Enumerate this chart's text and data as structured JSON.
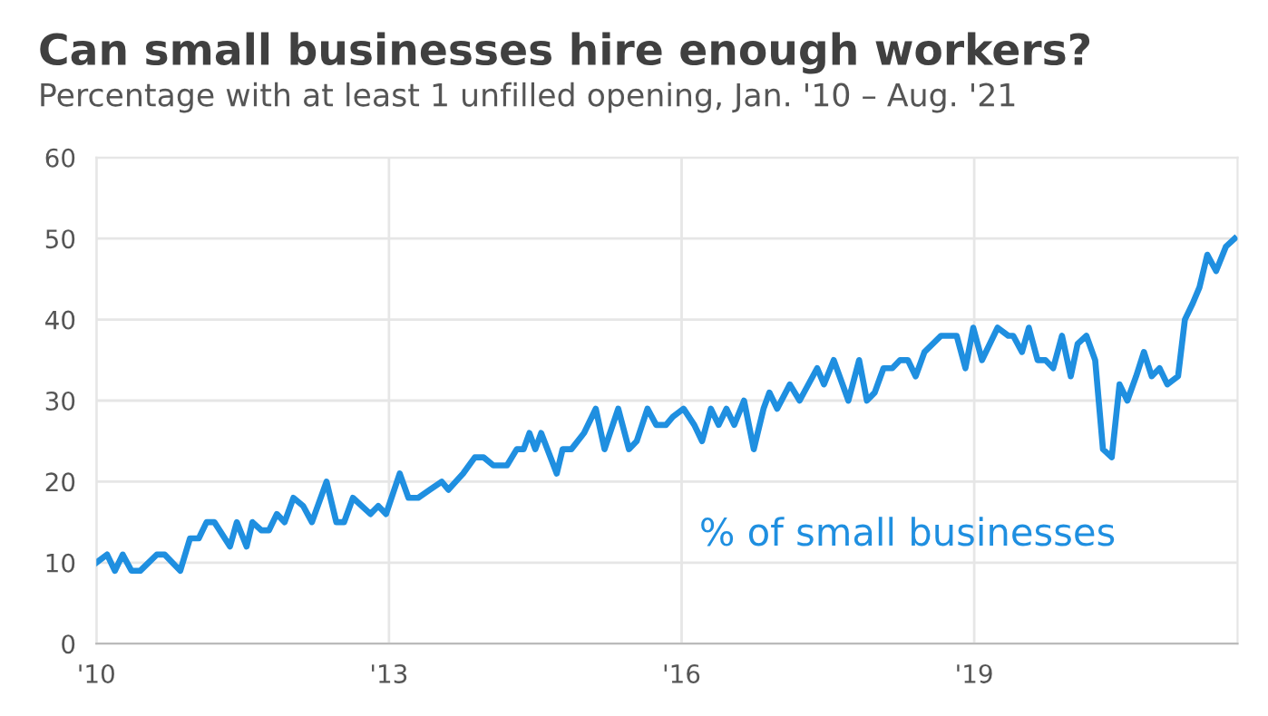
{
  "chart_data": {
    "type": "line",
    "title": "Can small businesses hire enough workers?",
    "subtitle": "Percentage with at least 1 unfilled opening, Jan. '10 – Aug. '21",
    "x": [
      2010.0,
      2010.11,
      2010.19,
      2010.27,
      2010.36,
      2010.45,
      2010.62,
      2010.7,
      2010.86,
      2010.96,
      2011.05,
      2011.13,
      2011.21,
      2011.37,
      2011.44,
      2011.54,
      2011.6,
      2011.69,
      2011.77,
      2011.85,
      2011.93,
      2012.02,
      2012.12,
      2012.21,
      2012.36,
      2012.46,
      2012.54,
      2012.63,
      2012.81,
      2012.89,
      2012.97,
      2013.11,
      2013.2,
      2013.3,
      2013.42,
      2013.54,
      2013.61,
      2013.76,
      2013.88,
      2013.97,
      2014.07,
      2014.21,
      2014.31,
      2014.38,
      2014.44,
      2014.5,
      2014.56,
      2014.72,
      2014.78,
      2014.87,
      2015.0,
      2015.12,
      2015.21,
      2015.35,
      2015.46,
      2015.54,
      2015.65,
      2015.74,
      2015.84,
      2015.91,
      2016.02,
      2016.13,
      2016.21,
      2016.3,
      2016.38,
      2016.46,
      2016.54,
      2016.64,
      2016.74,
      2016.84,
      2016.9,
      2016.98,
      2017.11,
      2017.21,
      2017.39,
      2017.46,
      2017.56,
      2017.71,
      2017.82,
      2017.9,
      2017.98,
      2018.07,
      2018.16,
      2018.24,
      2018.32,
      2018.4,
      2018.49,
      2018.66,
      2018.82,
      2018.91,
      2018.99,
      2019.08,
      2019.24,
      2019.35,
      2019.4,
      2019.49,
      2019.56,
      2019.65,
      2019.73,
      2019.81,
      2019.9,
      2019.99,
      2020.06,
      2020.15,
      2020.24,
      2020.32,
      2020.41,
      2020.49,
      2020.57,
      2020.66,
      2020.74,
      2020.82,
      2020.9,
      2020.98,
      2021.09,
      2021.16,
      2021.24,
      2021.31,
      2021.39,
      2021.48,
      2021.58,
      2021.67
    ],
    "series": [
      {
        "name": "% of small businesses",
        "color": "#1f8fe0",
        "values": [
          10,
          11,
          9,
          11,
          9,
          9,
          11,
          11,
          9,
          13,
          13,
          15,
          15,
          12,
          15,
          12,
          15,
          14,
          14,
          16,
          15,
          18,
          17,
          15,
          20,
          15,
          15,
          18,
          16,
          17,
          16,
          21,
          18,
          18,
          19,
          20,
          19,
          21,
          23,
          23,
          22,
          22,
          24,
          24,
          26,
          24,
          26,
          21,
          24,
          24,
          26,
          29,
          24,
          29,
          24,
          25,
          29,
          27,
          27,
          28,
          29,
          27,
          25,
          29,
          27,
          29,
          27,
          30,
          24,
          29,
          31,
          29,
          32,
          30,
          34,
          32,
          35,
          30,
          35,
          30,
          31,
          34,
          34,
          35,
          35,
          33,
          36,
          38,
          38,
          34,
          39,
          35,
          39,
          38,
          38,
          36,
          39,
          35,
          35,
          34,
          38,
          33,
          37,
          38,
          35,
          24,
          23,
          32,
          30,
          33,
          36,
          33,
          34,
          32,
          33,
          40,
          42,
          44,
          48,
          46,
          49,
          50
        ]
      }
    ],
    "xlim": [
      2010,
      2021.7
    ],
    "xticks": [
      {
        "value": 2010,
        "label": "'10"
      },
      {
        "value": 2013,
        "label": "'13"
      },
      {
        "value": 2016,
        "label": "'16"
      },
      {
        "value": 2019,
        "label": "'19"
      }
    ],
    "ylim": [
      0,
      60
    ],
    "yticks": [
      0,
      10,
      20,
      30,
      40,
      50,
      60
    ],
    "grid": true,
    "legend": false,
    "line_style": "solid",
    "marker": "none"
  }
}
